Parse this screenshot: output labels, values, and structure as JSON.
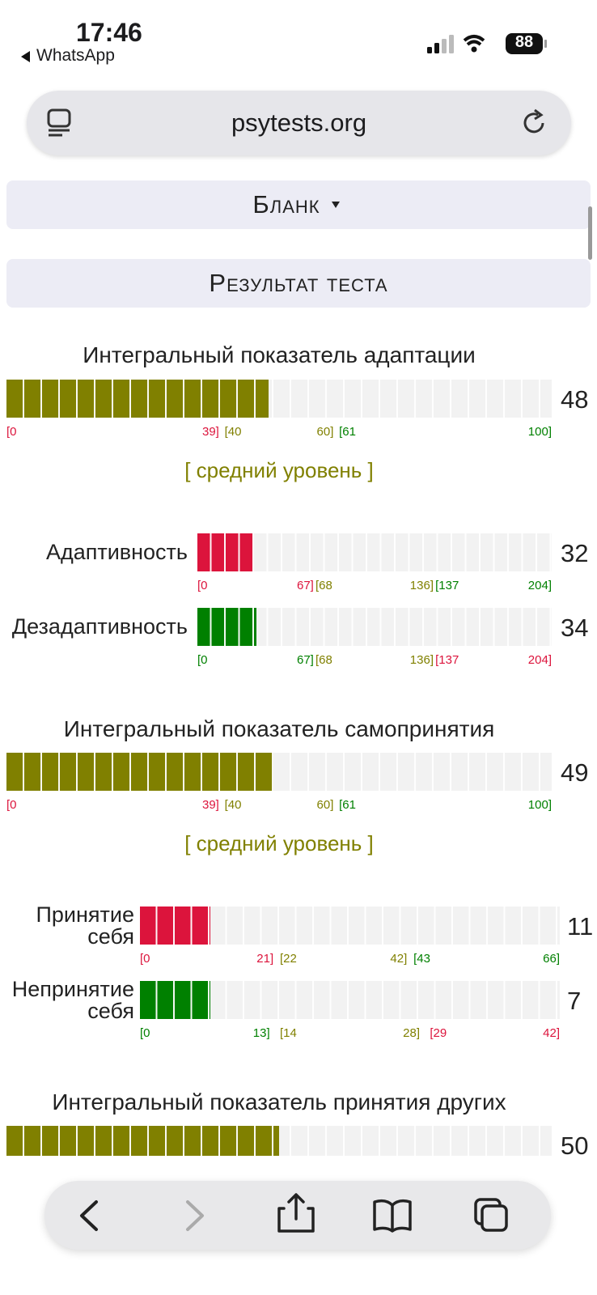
{
  "status_bar": {
    "time": "17:46",
    "back_app": "WhatsApp",
    "battery": "88"
  },
  "address_bar": {
    "url": "psytests.org"
  },
  "buttons": [
    "Бланк",
    "Результат теста"
  ],
  "integral": [
    {
      "title": "Интегральный показатель адаптации",
      "value": 48,
      "color": "#808000",
      "zones": [
        {
          "from": {
            "value": 0,
            "label": "[0"
          },
          "to": {
            "value": 39,
            "label": "39]"
          },
          "color": "#dc143c"
        },
        {
          "from": {
            "value": 40,
            "label": "[40"
          },
          "to": {
            "value": 60,
            "label": "60]"
          },
          "color": "#808000"
        },
        {
          "from": {
            "value": 61,
            "label": "[61"
          },
          "to": {
            "value": 100,
            "label": "100]"
          },
          "color": "#008000"
        }
      ],
      "level": "[ средний уровень ]"
    },
    {
      "title": "Интегральный показатель самопринятия",
      "value": 49,
      "color": "#808000",
      "zones": [
        {
          "from": {
            "value": 0,
            "label": "[0"
          },
          "to": {
            "value": 39,
            "label": "39]"
          },
          "color": "#dc143c"
        },
        {
          "from": {
            "value": 40,
            "label": "[40"
          },
          "to": {
            "value": 60,
            "label": "60]"
          },
          "color": "#808000"
        },
        {
          "from": {
            "value": 61,
            "label": "[61"
          },
          "to": {
            "value": 100,
            "label": "100]"
          },
          "color": "#008000"
        }
      ],
      "level": "[ средний уровень ]"
    },
    {
      "title": "Интегральный показатель принятия других",
      "value": 50,
      "color": "#808000",
      "xlim": [
        0,
        100
      ]
    }
  ],
  "groups": [
    [
      {
        "label": "Адаптивность",
        "value": 32,
        "color": "#dc143c",
        "zones": [
          {
            "from": {
              "value": 0,
              "label": "[0"
            },
            "to": {
              "value": 67,
              "label": "67]"
            },
            "color": "#dc143c"
          },
          {
            "from": {
              "value": 68,
              "label": "[68"
            },
            "to": {
              "value": 136,
              "label": "136]"
            },
            "color": "#808000"
          },
          {
            "from": {
              "value": 137,
              "label": "[137"
            },
            "to": {
              "value": 204,
              "label": "204]"
            },
            "color": "#008000"
          }
        ]
      },
      {
        "label": "Дезадаптивность",
        "value": 34,
        "color": "#008000",
        "zones": [
          {
            "from": {
              "value": 0,
              "label": "[0"
            },
            "to": {
              "value": 67,
              "label": "67]"
            },
            "color": "#008000"
          },
          {
            "from": {
              "value": 68,
              "label": "[68"
            },
            "to": {
              "value": 136,
              "label": "136]"
            },
            "color": "#808000"
          },
          {
            "from": {
              "value": 137,
              "label": "[137"
            },
            "to": {
              "value": 204,
              "label": "204]"
            },
            "color": "#dc143c"
          }
        ]
      }
    ],
    [
      {
        "label": "Принятие себя",
        "value": 11,
        "color": "#dc143c",
        "zones": [
          {
            "from": {
              "value": 0,
              "label": "[0"
            },
            "to": {
              "value": 21,
              "label": "21]"
            },
            "color": "#dc143c"
          },
          {
            "from": {
              "value": 22,
              "label": "[22"
            },
            "to": {
              "value": 42,
              "label": "42]"
            },
            "color": "#808000"
          },
          {
            "from": {
              "value": 43,
              "label": "[43"
            },
            "to": {
              "value": 66,
              "label": "66]"
            },
            "color": "#008000"
          }
        ]
      },
      {
        "label": "Непринятие себя",
        "value": 7,
        "color": "#008000",
        "zones": [
          {
            "from": {
              "value": 0,
              "label": "[0"
            },
            "to": {
              "value": 13,
              "label": "13]"
            },
            "color": "#008000"
          },
          {
            "from": {
              "value": 14,
              "label": "[14"
            },
            "to": {
              "value": 28,
              "label": "28]"
            },
            "color": "#808000"
          },
          {
            "from": {
              "value": 29,
              "label": "[29"
            },
            "to": {
              "value": 42,
              "label": "42]"
            },
            "color": "#dc143c"
          }
        ]
      }
    ]
  ]
}
